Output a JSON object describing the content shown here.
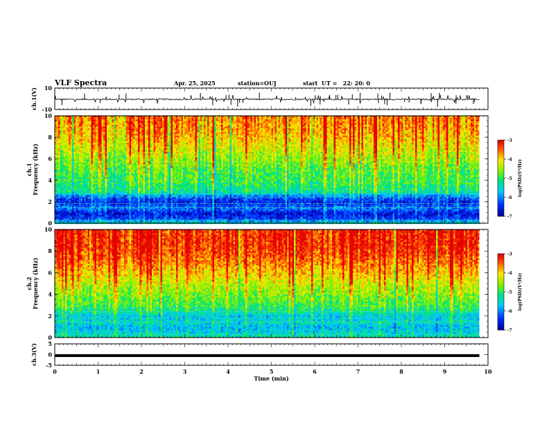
{
  "header": {
    "title": "VLF Spectra",
    "date": "Apr. 25, 2025",
    "station": "station=OUJ",
    "start": "start  UT =   22: 20: 0"
  },
  "chart_data": [
    {
      "type": "line",
      "panel": "ch1-waveform",
      "ylabel": "ch.1(V)",
      "ylim": [
        -10,
        10
      ],
      "yticks": [
        "10",
        "-10"
      ],
      "xlim": [
        0,
        10
      ],
      "series": [
        {
          "baseline": -0.5,
          "noise_range": [
            -1.5,
            1.0
          ],
          "x_end": 9.8
        }
      ]
    },
    {
      "type": "heatmap",
      "panel": "ch1-spectrogram",
      "ylabel_line1": "ch.1",
      "ylabel_line2": "Frequency (kHz)",
      "ylim": [
        0,
        10
      ],
      "yticks": [
        "0",
        "2",
        "4",
        "6",
        "8",
        "10"
      ],
      "xlim": [
        0,
        10
      ],
      "x_end": 9.8,
      "colorbar": {
        "label": "log(PSD)(V²/Hz)",
        "range": [
          -7,
          -3
        ],
        "ticks": [
          "-3",
          "-4",
          "-5",
          "-6",
          "-7"
        ]
      },
      "profile_khz": [
        [
          0,
          -5.2
        ],
        [
          0.5,
          -6.4
        ],
        [
          1,
          -6.6
        ],
        [
          1.5,
          -6.0
        ],
        [
          2,
          -6.5
        ],
        [
          2.5,
          -6.2
        ],
        [
          3,
          -5.2
        ],
        [
          4,
          -4.9
        ],
        [
          5,
          -4.8
        ],
        [
          6,
          -4.5
        ],
        [
          7,
          -4.2
        ],
        [
          8,
          -3.9
        ],
        [
          9,
          -3.7
        ],
        [
          10,
          -3.6
        ]
      ]
    },
    {
      "type": "heatmap",
      "panel": "ch2-spectrogram",
      "ylabel_line1": "ch.2",
      "ylabel_line2": "Frequency (kHz)",
      "ylim": [
        0,
        10
      ],
      "yticks": [
        "0",
        "2",
        "4",
        "6",
        "8",
        "10"
      ],
      "xlim": [
        0,
        10
      ],
      "x_end": 9.8,
      "colorbar": {
        "label": "log(PSD)(V²/Hz)",
        "range": [
          -7,
          -3
        ],
        "ticks": [
          "-3",
          "-4",
          "-5",
          "-6",
          "-7"
        ]
      },
      "profile_khz": [
        [
          0,
          -5.2
        ],
        [
          0.5,
          -5.5
        ],
        [
          1,
          -5.7
        ],
        [
          1.5,
          -5.4
        ],
        [
          2,
          -5.6
        ],
        [
          2.5,
          -5.2
        ],
        [
          3,
          -4.9
        ],
        [
          4,
          -4.6
        ],
        [
          5,
          -4.3
        ],
        [
          6,
          -3.9
        ],
        [
          7,
          -3.6
        ],
        [
          8,
          -3.3
        ],
        [
          9,
          -3.2
        ],
        [
          10,
          -3.2
        ]
      ]
    },
    {
      "type": "line",
      "panel": "ch3-waveform",
      "ylabel": "ch.3(V)",
      "ylim": [
        -5,
        5
      ],
      "yticks": [
        "5",
        "0",
        "-5"
      ],
      "xlim": [
        0,
        10
      ],
      "xticks": [
        "0",
        "1",
        "2",
        "3",
        "4",
        "5",
        "6",
        "7",
        "8",
        "9",
        "10"
      ],
      "xlabel": "Time (min)",
      "series": [
        {
          "constant": -0.5,
          "x_end": 9.8
        }
      ]
    }
  ]
}
